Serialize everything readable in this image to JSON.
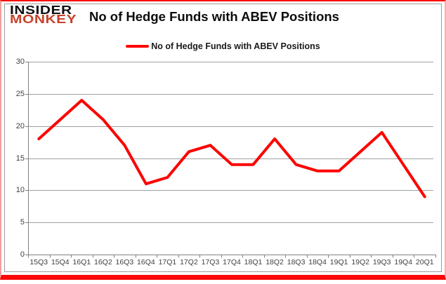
{
  "brand": {
    "line1": "INSIDER",
    "line2": "MONKEY"
  },
  "header": {
    "title": "No of Hedge Funds with ABEV Positions"
  },
  "legend": {
    "label": "No of Hedge Funds with ABEV Positions"
  },
  "colors": {
    "series_line": "#FE0000",
    "logo_red": "#C7432B",
    "gridline": "#A0A0A0",
    "axis": "#808080",
    "tick_text": "#404040",
    "frame_red": "#FB0707"
  },
  "chart_data": {
    "type": "line",
    "title": "No of Hedge Funds with ABEV Positions",
    "categories": [
      "15Q3",
      "15Q4",
      "16Q1",
      "16Q2",
      "16Q3",
      "16Q4",
      "17Q1",
      "17Q2",
      "17Q3",
      "17Q4",
      "18Q1",
      "18Q2",
      "18Q3",
      "18Q4",
      "19Q1",
      "19Q2",
      "19Q3",
      "19Q4",
      "20Q1"
    ],
    "series": [
      {
        "name": "No of Hedge Funds with ABEV Positions",
        "values": [
          18,
          21,
          24,
          21,
          17,
          11,
          12,
          16,
          17,
          14,
          14,
          18,
          14,
          13,
          13,
          16,
          19,
          14,
          9
        ]
      }
    ],
    "xlabel": "",
    "ylabel": "",
    "ylim": [
      0,
      30
    ],
    "yticks": [
      0,
      5,
      10,
      15,
      20,
      25,
      30
    ],
    "grid": "horizontal",
    "legend_position": "top-center"
  }
}
